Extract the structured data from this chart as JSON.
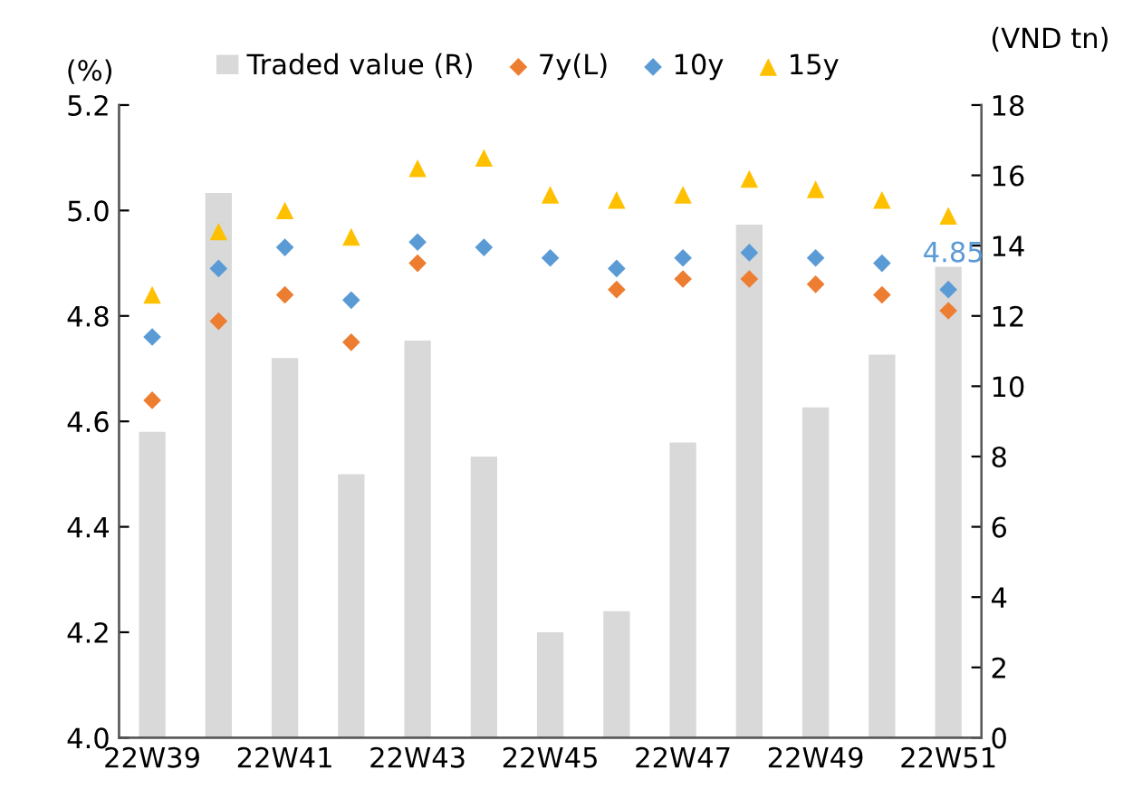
{
  "chart_data": {
    "type": "scatter",
    "categories": [
      "22W39",
      null,
      "22W41",
      null,
      "22W43",
      null,
      "22W45",
      null,
      "22W47",
      null,
      "22W49",
      null,
      "22W51"
    ],
    "series": [
      {
        "name": "Traded value (R)",
        "type": "bar",
        "axis": "y2",
        "color": "#d9d9d9",
        "values": [
          8.7,
          15.5,
          10.8,
          7.5,
          11.3,
          8.0,
          3.0,
          3.6,
          8.4,
          14.6,
          9.4,
          10.9,
          13.4
        ]
      },
      {
        "name": "7y(L)",
        "marker": "diamond",
        "color": "#ed7d31",
        "values": [
          4.64,
          4.79,
          4.84,
          4.75,
          4.9,
          null,
          null,
          4.85,
          4.87,
          4.87,
          4.86,
          4.84,
          4.81
        ]
      },
      {
        "name": "10y",
        "marker": "diamond",
        "color": "#5b9bd5",
        "values": [
          4.76,
          4.89,
          4.93,
          4.83,
          4.94,
          4.93,
          4.91,
          4.89,
          4.91,
          4.92,
          4.91,
          4.9,
          4.85
        ],
        "value_labels": [
          null,
          null,
          null,
          null,
          null,
          null,
          null,
          null,
          null,
          null,
          null,
          null,
          "4.85"
        ]
      },
      {
        "name": "15y",
        "marker": "triangle",
        "color": "#ffc000",
        "values": [
          4.84,
          4.96,
          5.0,
          4.95,
          5.08,
          5.1,
          5.03,
          5.02,
          5.03,
          5.06,
          5.04,
          5.02,
          4.99
        ]
      }
    ],
    "ylabel": "(%)",
    "y2label": "(VND tn)",
    "ylim": [
      4.0,
      5.2
    ],
    "yticks": [
      {
        "value": 4.0,
        "label": "4.0"
      },
      {
        "value": 4.2,
        "label": "4.2"
      },
      {
        "value": 4.4,
        "label": "4.4"
      },
      {
        "value": 4.6,
        "label": "4.6"
      },
      {
        "value": 4.8,
        "label": "4.8"
      },
      {
        "value": 5.0,
        "label": "5.0"
      },
      {
        "value": 5.2,
        "label": "5.2"
      }
    ],
    "y2lim": [
      0,
      18
    ],
    "y2ticks": [
      0,
      2,
      4,
      6,
      8,
      10,
      12,
      14,
      16,
      18
    ],
    "grid": false,
    "legend": "top"
  }
}
